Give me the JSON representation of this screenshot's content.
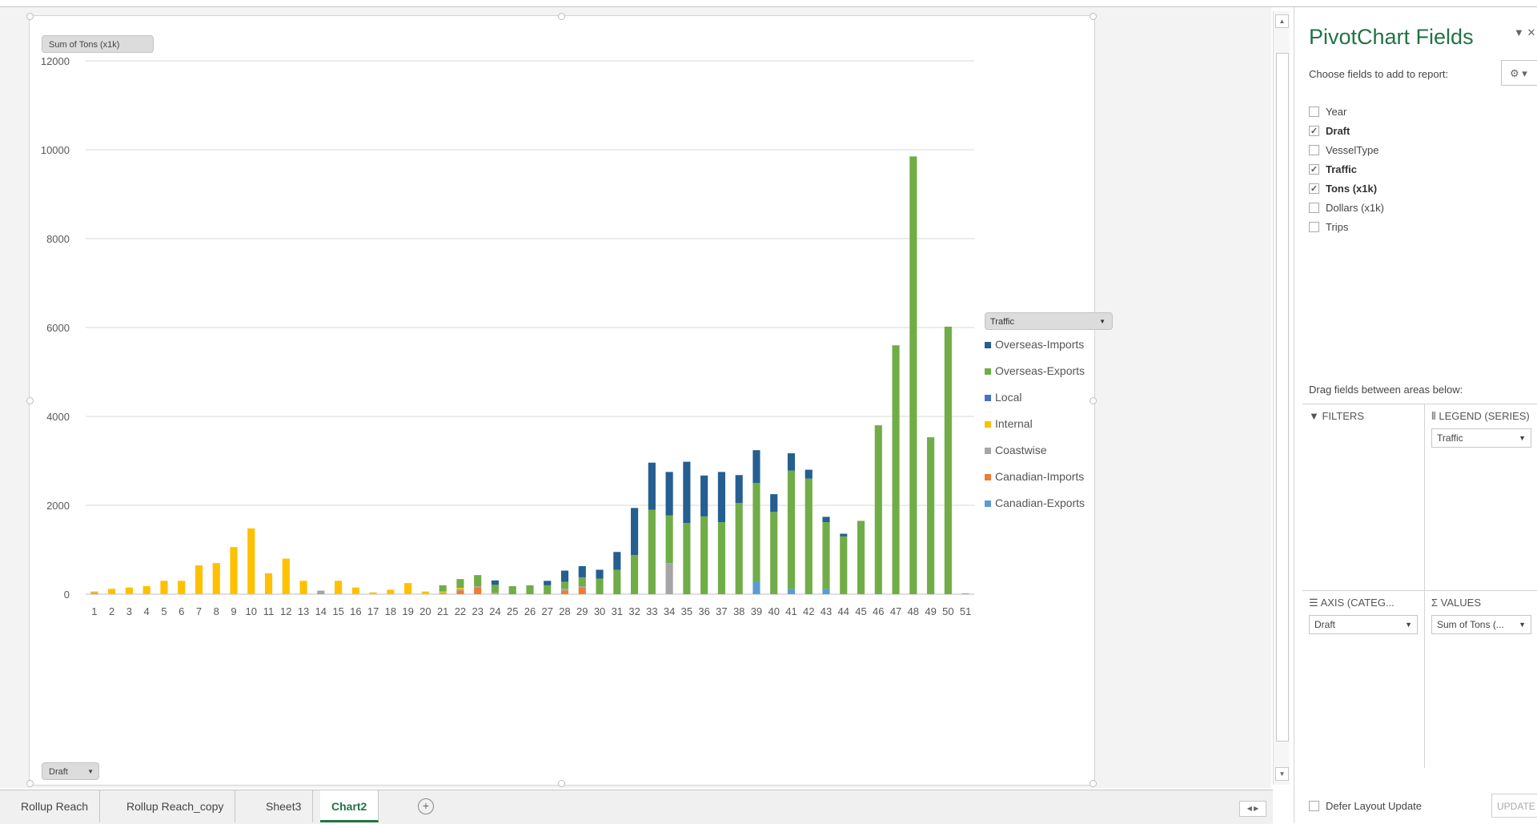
{
  "chart_data": {
    "type": "bar",
    "stacked": true,
    "categories": [
      "1",
      "2",
      "3",
      "4",
      "5",
      "6",
      "7",
      "8",
      "9",
      "10",
      "11",
      "12",
      "13",
      "14",
      "15",
      "16",
      "17",
      "18",
      "19",
      "20",
      "21",
      "22",
      "23",
      "24",
      "25",
      "26",
      "27",
      "28",
      "29",
      "30",
      "31",
      "32",
      "33",
      "34",
      "35",
      "36",
      "37",
      "38",
      "39",
      "40",
      "41",
      "42",
      "43",
      "44",
      "45",
      "46",
      "47",
      "48",
      "49",
      "50",
      "51"
    ],
    "ylim": [
      0,
      12000
    ],
    "yticks": [
      0,
      2000,
      4000,
      6000,
      8000,
      10000,
      12000
    ],
    "grid": true,
    "legend_position": "right",
    "series": [
      {
        "name": "Canadian-Exports",
        "color": "#5b9bd5",
        "values": [
          0,
          0,
          0,
          0,
          0,
          0,
          0,
          0,
          0,
          0,
          0,
          0,
          0,
          0,
          0,
          0,
          0,
          0,
          0,
          0,
          0,
          0,
          0,
          0,
          0,
          0,
          0,
          0,
          0,
          0,
          0,
          0,
          0,
          0,
          0,
          0,
          0,
          0,
          280,
          0,
          120,
          0,
          120,
          0,
          0,
          0,
          0,
          0,
          0,
          0,
          0
        ]
      },
      {
        "name": "Canadian-Imports",
        "color": "#ed7d31",
        "values": [
          0,
          0,
          0,
          0,
          0,
          0,
          0,
          0,
          0,
          0,
          0,
          0,
          0,
          0,
          0,
          0,
          0,
          0,
          0,
          0,
          0,
          80,
          150,
          0,
          0,
          0,
          0,
          80,
          150,
          0,
          0,
          0,
          0,
          0,
          0,
          0,
          0,
          0,
          0,
          0,
          0,
          0,
          0,
          0,
          0,
          0,
          0,
          0,
          0,
          0,
          0
        ]
      },
      {
        "name": "Coastwise",
        "color": "#a5a5a5",
        "values": [
          30,
          0,
          0,
          0,
          0,
          0,
          0,
          0,
          0,
          0,
          0,
          0,
          0,
          80,
          0,
          0,
          0,
          0,
          0,
          0,
          30,
          30,
          30,
          30,
          0,
          0,
          0,
          40,
          30,
          0,
          0,
          0,
          0,
          700,
          0,
          0,
          0,
          0,
          0,
          0,
          0,
          0,
          0,
          0,
          0,
          0,
          0,
          0,
          0,
          0,
          20
        ]
      },
      {
        "name": "Internal",
        "color": "#ffc000",
        "values": [
          30,
          120,
          150,
          180,
          300,
          300,
          650,
          700,
          1060,
          1480,
          470,
          800,
          300,
          0,
          300,
          150,
          40,
          100,
          250,
          60,
          30,
          30,
          0,
          0,
          0,
          0,
          0,
          0,
          0,
          0,
          0,
          0,
          0,
          0,
          0,
          0,
          0,
          0,
          0,
          0,
          0,
          0,
          0,
          0,
          0,
          0,
          0,
          0,
          0,
          0,
          0
        ]
      },
      {
        "name": "Local",
        "color": "#4472c4",
        "values": [
          0,
          0,
          0,
          0,
          0,
          0,
          0,
          0,
          0,
          0,
          0,
          0,
          0,
          0,
          0,
          0,
          0,
          0,
          0,
          0,
          0,
          0,
          0,
          0,
          0,
          0,
          0,
          0,
          0,
          0,
          0,
          0,
          0,
          0,
          0,
          0,
          0,
          0,
          0,
          0,
          0,
          0,
          0,
          0,
          0,
          0,
          0,
          0,
          0,
          0,
          0
        ]
      },
      {
        "name": "Overseas-Exports",
        "color": "#70ad47",
        "values": [
          0,
          0,
          0,
          0,
          0,
          0,
          0,
          0,
          0,
          0,
          0,
          0,
          0,
          0,
          0,
          0,
          0,
          0,
          0,
          0,
          140,
          200,
          250,
          180,
          180,
          200,
          200,
          160,
          200,
          350,
          550,
          880,
          1900,
          1070,
          1600,
          1750,
          1620,
          2050,
          2220,
          1850,
          2660,
          2600,
          1500,
          1300,
          1650,
          3800,
          5600,
          9850,
          3530,
          6020,
          0
        ]
      },
      {
        "name": "Overseas-Imports",
        "color": "#255e91",
        "values": [
          0,
          0,
          0,
          0,
          0,
          0,
          0,
          0,
          0,
          0,
          0,
          0,
          0,
          0,
          0,
          0,
          0,
          0,
          0,
          0,
          0,
          0,
          0,
          100,
          0,
          0,
          100,
          250,
          250,
          200,
          400,
          1060,
          1060,
          980,
          1380,
          920,
          1130,
          630,
          740,
          400,
          390,
          200,
          120,
          60,
          0,
          0,
          0,
          0,
          0,
          0,
          0
        ]
      }
    ]
  },
  "chart": {
    "values_field_btn": "Sum of Tons (x1k)",
    "axis_field_btn": "Draft",
    "legend_title": "Traffic",
    "legend_items": [
      "Overseas-Imports",
      "Overseas-Exports",
      "Local",
      "Internal",
      "Coastwise",
      "Canadian-Imports",
      "Canadian-Exports"
    ],
    "legend_colors": [
      "#255e91",
      "#70ad47",
      "#4472c4",
      "#ffc000",
      "#a5a5a5",
      "#ed7d31",
      "#5b9bd5"
    ]
  },
  "sheet_tabs": [
    "Rollup Reach",
    "Rollup Reach_copy",
    "Sheet3",
    "Chart2"
  ],
  "active_tab": "Chart2",
  "pane": {
    "title": "PivotChart Fields",
    "choose_label": "Choose fields to add to report:",
    "fields": [
      {
        "label": "Year",
        "checked": false
      },
      {
        "label": "Draft",
        "checked": true
      },
      {
        "label": "VesselType",
        "checked": false
      },
      {
        "label": "Traffic",
        "checked": true
      },
      {
        "label": "Tons (x1k)",
        "checked": true
      },
      {
        "label": "Dollars (x1k)",
        "checked": false
      },
      {
        "label": "Trips",
        "checked": false
      }
    ],
    "drag_label": "Drag fields between areas below:",
    "filters_label": "FILTERS",
    "legend_label": "LEGEND (SERIES)",
    "legend_field": "Traffic",
    "axis_label": "AXIS (CATEG...",
    "axis_field": "Draft",
    "values_label": "VALUES",
    "values_field": "Sum of Tons (... ",
    "defer_label": "Defer Layout Update",
    "update_label": "UPDATE"
  }
}
